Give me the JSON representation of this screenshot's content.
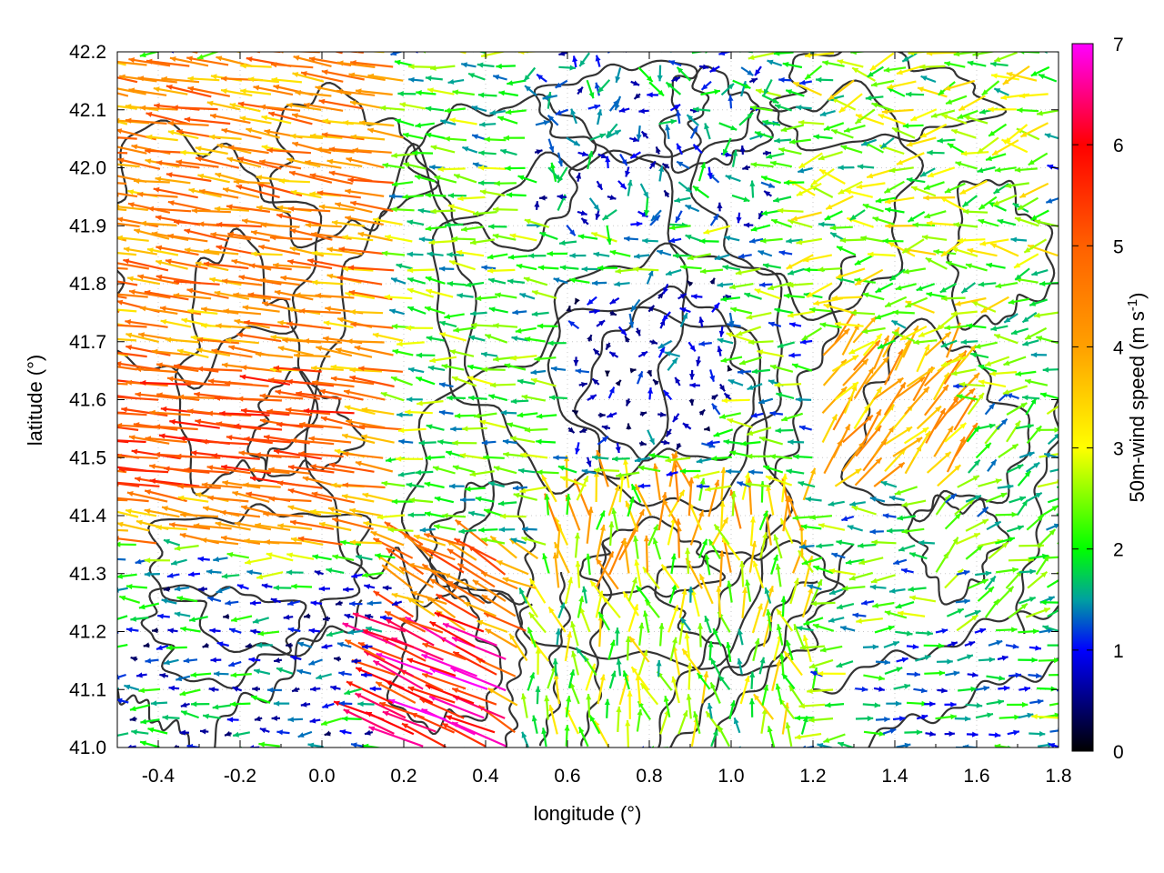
{
  "chart_data": {
    "type": "vector-field",
    "xlabel": "longitude (°)",
    "ylabel": "latitude (°)",
    "xlim": [
      -0.5,
      1.8
    ],
    "ylim": [
      41.0,
      42.2
    ],
    "xticks": [
      "-0.4",
      "-0.2",
      "0.0",
      "0.2",
      "0.4",
      "0.6",
      "0.8",
      "1.0",
      "1.2",
      "1.4",
      "1.6",
      "1.8"
    ],
    "xtick_values": [
      -0.4,
      -0.2,
      0.0,
      0.2,
      0.4,
      0.6,
      0.8,
      1.0,
      1.2,
      1.4,
      1.6,
      1.8
    ],
    "yticks": [
      "41.0",
      "41.1",
      "41.2",
      "41.3",
      "41.4",
      "41.5",
      "41.6",
      "41.7",
      "41.8",
      "41.9",
      "42.0",
      "42.1",
      "42.2"
    ],
    "ytick_values": [
      41.0,
      41.1,
      41.2,
      41.3,
      41.4,
      41.5,
      41.6,
      41.7,
      41.8,
      41.9,
      42.0,
      42.1,
      42.2
    ],
    "grid": true,
    "colorbar": {
      "label": "50m-wind speed (m s",
      "label_sup": "-1",
      "label_end": ")",
      "range": [
        0,
        7
      ],
      "ticks": [
        "0",
        "1",
        "2",
        "3",
        "4",
        "5",
        "6",
        "7"
      ],
      "tick_values": [
        0,
        1,
        2,
        3,
        4,
        5,
        6,
        7
      ],
      "palette": [
        {
          "v": 0,
          "c": "#000000"
        },
        {
          "v": 1,
          "c": "#0000ff"
        },
        {
          "v": 1.5,
          "c": "#00a0a0"
        },
        {
          "v": 2,
          "c": "#00ff00"
        },
        {
          "v": 3,
          "c": "#ffff00"
        },
        {
          "v": 4,
          "c": "#ffa000"
        },
        {
          "v": 5,
          "c": "#ff6000"
        },
        {
          "v": 6,
          "c": "#ff0000"
        },
        {
          "v": 7,
          "c": "#ff00ff"
        }
      ]
    },
    "vector_regions": [
      {
        "lon": [
          -0.5,
          0.2
        ],
        "lat": [
          41.35,
          42.2
        ],
        "speed": [
          3.2,
          5.2
        ],
        "dir_deg": [
          165,
          178
        ]
      },
      {
        "lon": [
          -0.5,
          0.1
        ],
        "lat": [
          41.45,
          41.65
        ],
        "speed": [
          4.5,
          5.8
        ],
        "dir_deg": [
          170,
          178
        ]
      },
      {
        "lon": [
          0.15,
          0.45
        ],
        "lat": [
          41.0,
          41.2
        ],
        "speed": [
          5.0,
          7.0
        ],
        "dir_deg": [
          150,
          162
        ]
      },
      {
        "lon": [
          0.2,
          0.7
        ],
        "lat": [
          41.0,
          41.35
        ],
        "speed": [
          3.5,
          5.5
        ],
        "dir_deg": [
          140,
          165
        ]
      },
      {
        "lon": [
          -0.5,
          0.6
        ],
        "lat": [
          41.0,
          41.3
        ],
        "speed": [
          0.3,
          2.2
        ],
        "dir_deg": [
          160,
          200
        ]
      },
      {
        "lon": [
          0.1,
          0.8
        ],
        "lat": [
          41.3,
          42.2
        ],
        "speed": [
          1.3,
          3.0
        ],
        "dir_deg": [
          160,
          190
        ]
      },
      {
        "lon": [
          0.6,
          1.0
        ],
        "lat": [
          41.5,
          41.8
        ],
        "speed": [
          0.2,
          1.5
        ],
        "dir_deg": [
          0,
          360
        ]
      },
      {
        "lon": [
          0.5,
          1.1
        ],
        "lat": [
          41.9,
          42.2
        ],
        "speed": [
          0.5,
          2.0
        ],
        "dir_deg": [
          0,
          360
        ]
      },
      {
        "lon": [
          0.55,
          1.2
        ],
        "lat": [
          41.25,
          41.45
        ],
        "speed": [
          2.0,
          4.5
        ],
        "dir_deg": [
          60,
          130
        ]
      },
      {
        "lon": [
          0.5,
          1.2
        ],
        "lat": [
          41.0,
          41.25
        ],
        "speed": [
          1.5,
          3.5
        ],
        "dir_deg": [
          70,
          130
        ]
      },
      {
        "lon": [
          1.2,
          1.55
        ],
        "lat": [
          41.45,
          41.7
        ],
        "speed": [
          3.0,
          4.5
        ],
        "dir_deg": [
          30,
          70
        ]
      },
      {
        "lon": [
          1.2,
          1.8
        ],
        "lat": [
          41.7,
          42.2
        ],
        "speed": [
          1.5,
          3.5
        ],
        "dir_deg": [
          150,
          220
        ]
      },
      {
        "lon": [
          1.3,
          1.8
        ],
        "lat": [
          41.0,
          41.2
        ],
        "speed": [
          0.8,
          2.2
        ],
        "dir_deg": [
          -10,
          20
        ]
      },
      {
        "lon": [
          1.5,
          1.8
        ],
        "lat": [
          41.2,
          41.6
        ],
        "speed": [
          1.2,
          2.8
        ],
        "dir_deg": [
          0,
          60
        ]
      }
    ],
    "contour_lines": "terrain elevation contours (unlabeled)"
  }
}
